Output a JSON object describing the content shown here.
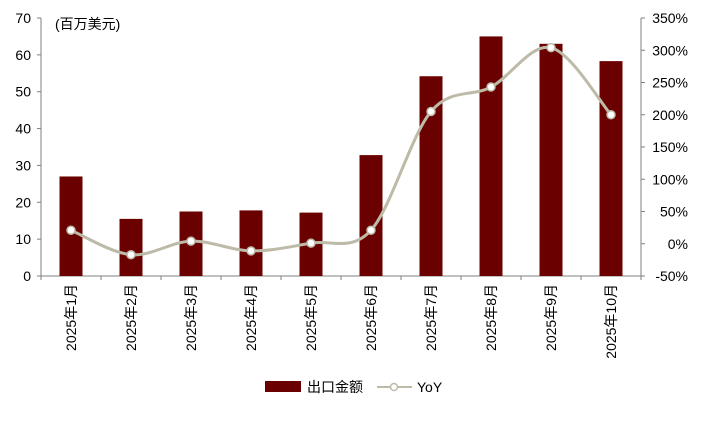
{
  "chart_data": {
    "type": "bar",
    "unit_label": "(百万美元)",
    "categories": [
      "2025年1月",
      "2025年2月",
      "2025年3月",
      "2025年4月",
      "2025年5月",
      "2025年6月",
      "2025年7月",
      "2025年8月",
      "2025年9月",
      "2025年10月"
    ],
    "series": [
      {
        "name": "出口金额",
        "type": "bar",
        "axis": "left",
        "color": "#6b0000",
        "values": [
          27.0,
          15.5,
          17.5,
          17.8,
          17.2,
          32.8,
          54.2,
          65.0,
          63.0,
          58.3
        ]
      },
      {
        "name": "YoY",
        "type": "line",
        "axis": "right",
        "color": "#bdbaa7",
        "values": [
          21,
          -17,
          4,
          -11,
          1,
          21,
          205,
          243,
          304,
          200
        ]
      }
    ],
    "y_left": {
      "range": [
        0,
        70
      ],
      "ticks": [
        "0",
        "10",
        "20",
        "30",
        "40",
        "50",
        "60",
        "70"
      ]
    },
    "y_right": {
      "range": [
        -50,
        350
      ],
      "ticks": [
        "-50%",
        "0%",
        "50%",
        "100%",
        "150%",
        "200%",
        "250%",
        "300%",
        "350%"
      ]
    },
    "grid": false,
    "legend_position": "bottom-center"
  }
}
